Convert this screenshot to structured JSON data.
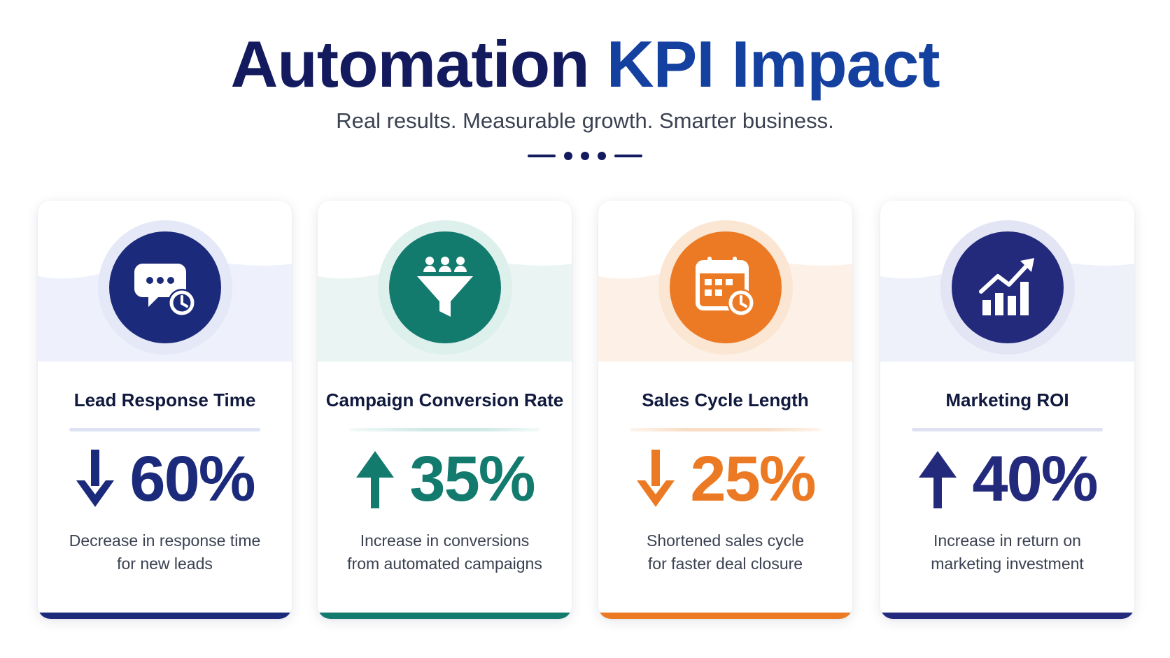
{
  "header": {
    "title_part1": "Automation",
    "title_part2": "KPI Impact",
    "subtitle": "Real results. Measurable growth. Smarter business."
  },
  "cards": [
    {
      "title": "Lead Response Time",
      "direction": "down",
      "value": "60%",
      "desc_line1": "Decrease in response time",
      "desc_line2": "for new leads",
      "icon": "chat-clock-icon",
      "color": "#1b2a7a"
    },
    {
      "title": "Campaign Conversion Rate",
      "direction": "up",
      "value": "35%",
      "desc_line1": "Increase in conversions",
      "desc_line2": "from automated campaigns",
      "icon": "funnel-people-icon",
      "color": "#137a6e"
    },
    {
      "title": "Sales Cycle Length",
      "direction": "down",
      "value": "25%",
      "desc_line1": "Shortened sales cycle",
      "desc_line2": "for faster deal closure",
      "icon": "calendar-clock-icon",
      "color": "#ec7a24"
    },
    {
      "title": "Marketing ROI",
      "direction": "up",
      "value": "40%",
      "desc_line1": "Increase in return on",
      "desc_line2": "marketing investment",
      "icon": "growth-chart-icon",
      "color": "#232a7c"
    }
  ]
}
